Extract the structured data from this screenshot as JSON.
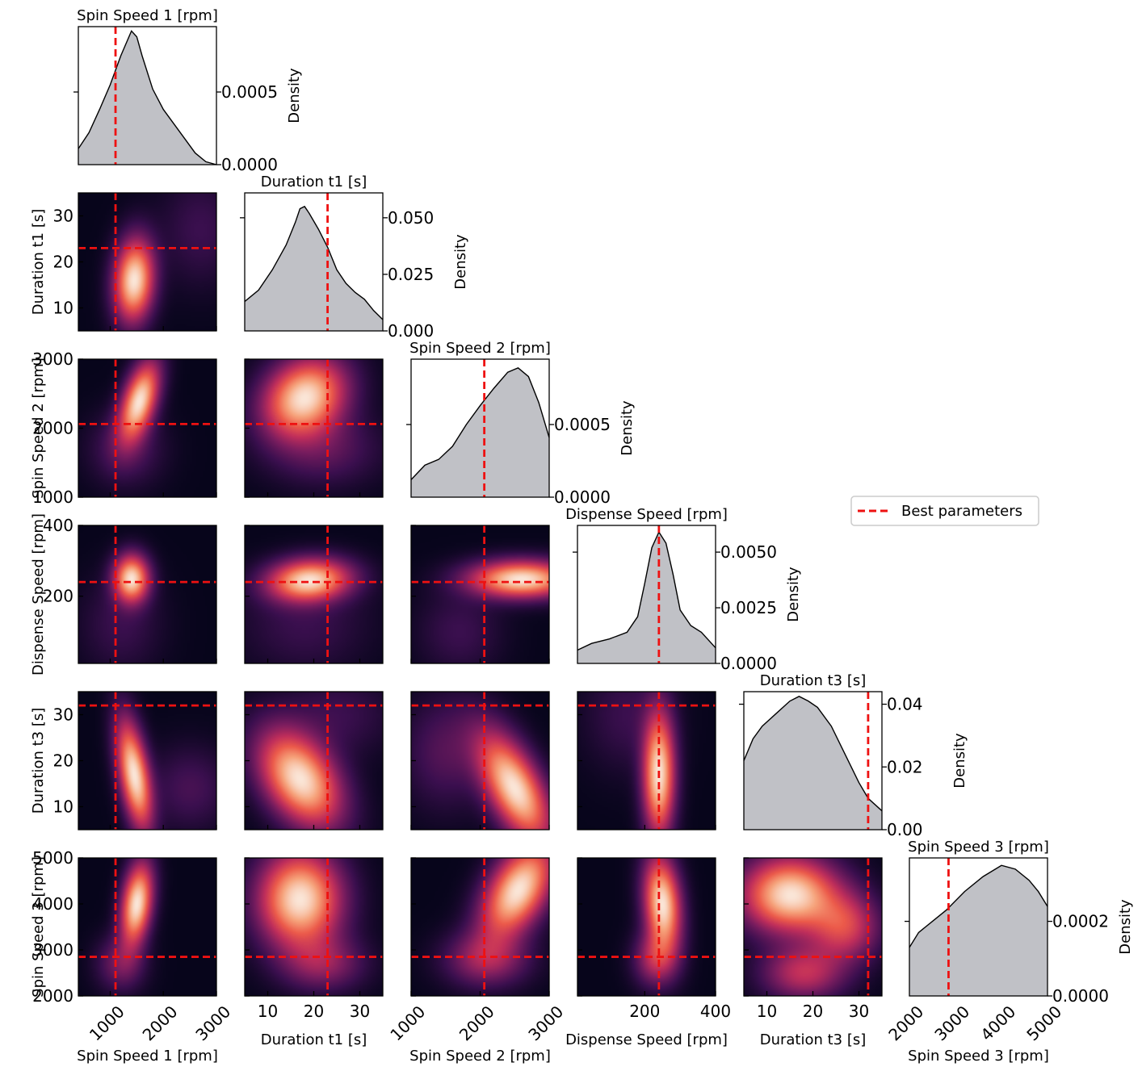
{
  "chart_data": {
    "type": "corner-plot",
    "colors": {
      "kde_fill": "#c0c1c6",
      "best_line": "#ee1111",
      "colormap": [
        "#07051b",
        "#3b0f4f",
        "#7a1d5f",
        "#c02e5b",
        "#ec5a4a",
        "#f6a27a",
        "#fae6d8"
      ]
    },
    "legend": {
      "label": "Best parameters",
      "position": "right"
    },
    "density_label": "Density",
    "params": [
      {
        "name": "Spin Speed 1 [rpm]",
        "range": [
          400,
          3000
        ],
        "ticks": [
          1000,
          2000,
          3000
        ],
        "ticklabels": [
          "1000",
          "2000",
          "3000"
        ],
        "best": 1100
      },
      {
        "name": "Duration t1 [s]",
        "range": [
          5,
          35
        ],
        "ticks": [
          10,
          20,
          30
        ],
        "ticklabels": [
          "10",
          "20",
          "30"
        ],
        "best": 23
      },
      {
        "name": "Spin Speed 2 [rpm]",
        "range": [
          1000,
          3000
        ],
        "ticks": [
          1000,
          2000,
          3000
        ],
        "ticklabels": [
          "1000",
          "2000",
          "3000"
        ],
        "best": 2060
      },
      {
        "name": "Dispense Speed [rpm]",
        "range": [
          10,
          400
        ],
        "ticks": [
          200,
          400
        ],
        "ticklabels": [
          "200",
          "400"
        ],
        "best": 240
      },
      {
        "name": "Duration t3 [s]",
        "range": [
          5,
          35
        ],
        "ticks": [
          10,
          20,
          30
        ],
        "ticklabels": [
          "10",
          "20",
          "30"
        ],
        "best": 32
      },
      {
        "name": "Spin Speed 3 [rpm]",
        "range": [
          2000,
          5000
        ],
        "ticks": [
          2000,
          3000,
          4000,
          5000
        ],
        "ticklabels": [
          "2000",
          "3000",
          "4000",
          "5000"
        ],
        "best": 2850
      }
    ],
    "diagonal": [
      {
        "ymax": 0.00095,
        "yticks": [
          0,
          0.0005
        ],
        "yticklabels": [
          "0.0000",
          "0.0005"
        ],
        "curve": [
          [
            400,
            0.00011
          ],
          [
            600,
            0.00022
          ],
          [
            800,
            0.00038
          ],
          [
            1000,
            0.00055
          ],
          [
            1200,
            0.00075
          ],
          [
            1400,
            0.00092
          ],
          [
            1500,
            0.00088
          ],
          [
            1600,
            0.00075
          ],
          [
            1800,
            0.00052
          ],
          [
            2000,
            0.00038
          ],
          [
            2200,
            0.00028
          ],
          [
            2400,
            0.00018
          ],
          [
            2600,
            8e-05
          ],
          [
            2800,
            2e-05
          ],
          [
            3000,
            0.0
          ]
        ]
      },
      {
        "ymax": 0.061,
        "yticks": [
          0,
          0.025,
          0.05
        ],
        "yticklabels": [
          "0.000",
          "0.025",
          "0.050"
        ],
        "curve": [
          [
            5,
            0.013
          ],
          [
            8,
            0.018
          ],
          [
            11,
            0.027
          ],
          [
            14,
            0.038
          ],
          [
            16,
            0.048
          ],
          [
            17,
            0.054
          ],
          [
            18,
            0.055
          ],
          [
            19,
            0.052
          ],
          [
            21,
            0.045
          ],
          [
            23,
            0.037
          ],
          [
            25,
            0.027
          ],
          [
            27,
            0.021
          ],
          [
            29,
            0.017
          ],
          [
            31,
            0.014
          ],
          [
            33,
            0.009
          ],
          [
            35,
            0.005
          ]
        ]
      },
      {
        "ymax": 0.00095,
        "yticks": [
          0,
          0.0005
        ],
        "yticklabels": [
          "0.0000",
          "0.0005"
        ],
        "curve": [
          [
            1000,
            0.00012
          ],
          [
            1200,
            0.00022
          ],
          [
            1400,
            0.00026
          ],
          [
            1600,
            0.00035
          ],
          [
            1800,
            0.0005
          ],
          [
            2000,
            0.00063
          ],
          [
            2200,
            0.00075
          ],
          [
            2400,
            0.00086
          ],
          [
            2550,
            0.00089
          ],
          [
            2700,
            0.00083
          ],
          [
            2850,
            0.00065
          ],
          [
            3000,
            0.00041
          ]
        ]
      },
      {
        "ymax": 0.0062,
        "yticks": [
          0,
          0.0025,
          0.005
        ],
        "yticklabels": [
          "0.0000",
          "0.0025",
          "0.0050"
        ],
        "curve": [
          [
            10,
            0.0006
          ],
          [
            50,
            0.0009
          ],
          [
            100,
            0.0011
          ],
          [
            150,
            0.0014
          ],
          [
            180,
            0.0021
          ],
          [
            200,
            0.0036
          ],
          [
            220,
            0.0052
          ],
          [
            240,
            0.0059
          ],
          [
            260,
            0.0054
          ],
          [
            280,
            0.004
          ],
          [
            300,
            0.0024
          ],
          [
            330,
            0.0017
          ],
          [
            360,
            0.0014
          ],
          [
            400,
            0.0007
          ]
        ]
      },
      {
        "ymax": 0.044,
        "yticks": [
          0,
          0.02,
          0.04
        ],
        "yticklabels": [
          "0.00",
          "0.02",
          "0.04"
        ],
        "curve": [
          [
            5,
            0.022
          ],
          [
            7,
            0.029
          ],
          [
            9,
            0.033
          ],
          [
            12,
            0.037
          ],
          [
            15,
            0.041
          ],
          [
            17,
            0.0425
          ],
          [
            19,
            0.041
          ],
          [
            21,
            0.039
          ],
          [
            24,
            0.033
          ],
          [
            27,
            0.024
          ],
          [
            30,
            0.015
          ],
          [
            32,
            0.01
          ],
          [
            35,
            0.006
          ]
        ]
      },
      {
        "ymax": 0.00037,
        "yticks": [
          0,
          0.0002
        ],
        "yticklabels": [
          "0.0000",
          "0.0002"
        ],
        "curve": [
          [
            2000,
            0.00013
          ],
          [
            2200,
            0.00017
          ],
          [
            2500,
            0.0002
          ],
          [
            2800,
            0.00023
          ],
          [
            3200,
            0.00028
          ],
          [
            3600,
            0.00032
          ],
          [
            4000,
            0.00035
          ],
          [
            4300,
            0.00034
          ],
          [
            4600,
            0.00031
          ],
          [
            4800,
            0.00028
          ],
          [
            5000,
            0.00024
          ]
        ]
      }
    ],
    "joint_peaks": [
      {
        "row": 1,
        "col": 0,
        "peaks": [
          {
            "x": 1450,
            "y": 16,
            "sx": 250,
            "sy": 6,
            "r": 0.1,
            "w": 1.0
          },
          {
            "x": 2700,
            "y": 27,
            "sx": 500,
            "sy": 8,
            "r": 0,
            "w": 0.12
          }
        ]
      },
      {
        "row": 2,
        "col": 0,
        "peaks": [
          {
            "x": 1550,
            "y": 2400,
            "sx": 250,
            "sy": 380,
            "r": 0.5,
            "w": 1.0
          },
          {
            "x": 1300,
            "y": 1700,
            "sx": 450,
            "sy": 350,
            "r": 0,
            "w": 0.18
          }
        ]
      },
      {
        "row": 2,
        "col": 1,
        "peaks": [
          {
            "x": 18,
            "y": 2450,
            "sx": 6,
            "sy": 380,
            "r": 0.2,
            "w": 1.0
          },
          {
            "x": 22,
            "y": 1700,
            "sx": 8,
            "sy": 350,
            "r": 0,
            "w": 0.2
          }
        ]
      },
      {
        "row": 3,
        "col": 0,
        "peaks": [
          {
            "x": 1400,
            "y": 250,
            "sx": 220,
            "sy": 45,
            "r": 0,
            "w": 1.0
          },
          {
            "x": 1200,
            "y": 120,
            "sx": 500,
            "sy": 90,
            "r": 0,
            "w": 0.12
          }
        ]
      },
      {
        "row": 3,
        "col": 1,
        "peaks": [
          {
            "x": 19,
            "y": 245,
            "sx": 6,
            "sy": 40,
            "r": 0.1,
            "w": 1.0
          },
          {
            "x": 18,
            "y": 120,
            "sx": 9,
            "sy": 90,
            "r": 0,
            "w": 0.12
          }
        ]
      },
      {
        "row": 3,
        "col": 2,
        "peaks": [
          {
            "x": 2600,
            "y": 248,
            "sx": 500,
            "sy": 35,
            "r": 0,
            "w": 1.0
          },
          {
            "x": 1700,
            "y": 100,
            "sx": 400,
            "sy": 80,
            "r": 0,
            "w": 0.12
          }
        ]
      },
      {
        "row": 4,
        "col": 0,
        "peaks": [
          {
            "x": 1450,
            "y": 17,
            "sx": 220,
            "sy": 8,
            "r": -0.5,
            "w": 1.0
          },
          {
            "x": 2500,
            "y": 14,
            "sx": 500,
            "sy": 6,
            "r": 0,
            "w": 0.15
          }
        ]
      },
      {
        "row": 4,
        "col": 1,
        "peaks": [
          {
            "x": 17,
            "y": 16,
            "sx": 6,
            "sy": 7,
            "r": -0.4,
            "w": 1.0
          },
          {
            "x": 25,
            "y": 30,
            "sx": 8,
            "sy": 6,
            "r": 0,
            "w": 0.12
          }
        ]
      },
      {
        "row": 4,
        "col": 2,
        "peaks": [
          {
            "x": 2500,
            "y": 14,
            "sx": 350,
            "sy": 8,
            "r": -0.6,
            "w": 1.0
          },
          {
            "x": 1500,
            "y": 22,
            "sx": 400,
            "sy": 8,
            "r": 0,
            "w": 0.18
          }
        ]
      },
      {
        "row": 4,
        "col": 3,
        "peaks": [
          {
            "x": 240,
            "y": 17,
            "sx": 30,
            "sy": 9,
            "r": 0,
            "w": 1.0
          },
          {
            "x": 150,
            "y": 30,
            "sx": 80,
            "sy": 8,
            "r": 0,
            "w": 0.12
          }
        ]
      },
      {
        "row": 5,
        "col": 0,
        "peaks": [
          {
            "x": 1500,
            "y": 4000,
            "sx": 200,
            "sy": 600,
            "r": 0.3,
            "w": 1.0
          },
          {
            "x": 1200,
            "y": 2700,
            "sx": 300,
            "sy": 400,
            "r": 0,
            "w": 0.25
          }
        ]
      },
      {
        "row": 5,
        "col": 1,
        "peaks": [
          {
            "x": 17,
            "y": 4100,
            "sx": 6,
            "sy": 700,
            "r": 0,
            "w": 1.0
          },
          {
            "x": 22,
            "y": 2700,
            "sx": 6,
            "sy": 400,
            "r": 0,
            "w": 0.3
          }
        ]
      },
      {
        "row": 5,
        "col": 2,
        "peaks": [
          {
            "x": 2550,
            "y": 4300,
            "sx": 350,
            "sy": 700,
            "r": 0.5,
            "w": 1.0
          },
          {
            "x": 2100,
            "y": 2800,
            "sx": 400,
            "sy": 400,
            "r": 0,
            "w": 0.35
          }
        ]
      },
      {
        "row": 5,
        "col": 3,
        "peaks": [
          {
            "x": 250,
            "y": 4000,
            "sx": 35,
            "sy": 700,
            "r": -0.2,
            "w": 1.0
          },
          {
            "x": 230,
            "y": 2800,
            "sx": 40,
            "sy": 400,
            "r": 0,
            "w": 0.4
          }
        ]
      },
      {
        "row": 5,
        "col": 4,
        "peaks": [
          {
            "x": 15,
            "y": 4200,
            "sx": 7,
            "sy": 550,
            "r": 0,
            "w": 1.0
          },
          {
            "x": 27,
            "y": 3500,
            "sx": 5,
            "sy": 500,
            "r": 0,
            "w": 0.5
          },
          {
            "x": 18,
            "y": 2500,
            "sx": 6,
            "sy": 400,
            "r": 0,
            "w": 0.45
          }
        ]
      }
    ]
  }
}
